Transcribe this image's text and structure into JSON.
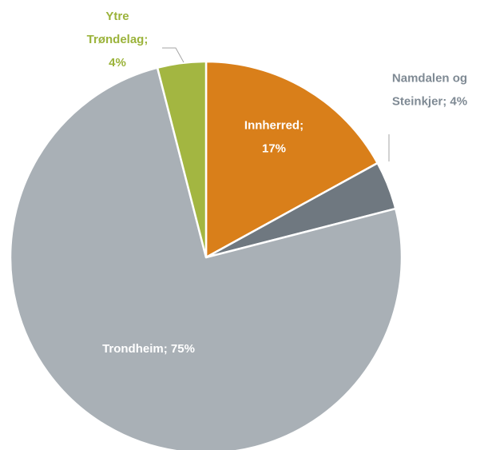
{
  "chart_data": {
    "type": "pie",
    "categories": [
      "Innherred",
      "Namdalen og Steinkjer",
      "Trondheim",
      "Ytre Trøndelag"
    ],
    "values": [
      17,
      4,
      75,
      4
    ],
    "value_labels": [
      [
        "Innherred;",
        "17%"
      ],
      [
        "Namdalen og",
        "Steinkjer; 4%"
      ],
      [
        "Trondheim; 75%"
      ],
      [
        "Ytre",
        "Trøndelag;",
        "4%"
      ]
    ],
    "colors": [
      "#d97f1a",
      "#6f7880",
      "#a9b0b6",
      "#a3b641"
    ],
    "label_colors": [
      "#ffffff",
      "#7f8a94",
      "#ffffff",
      "#9bb33b"
    ]
  }
}
